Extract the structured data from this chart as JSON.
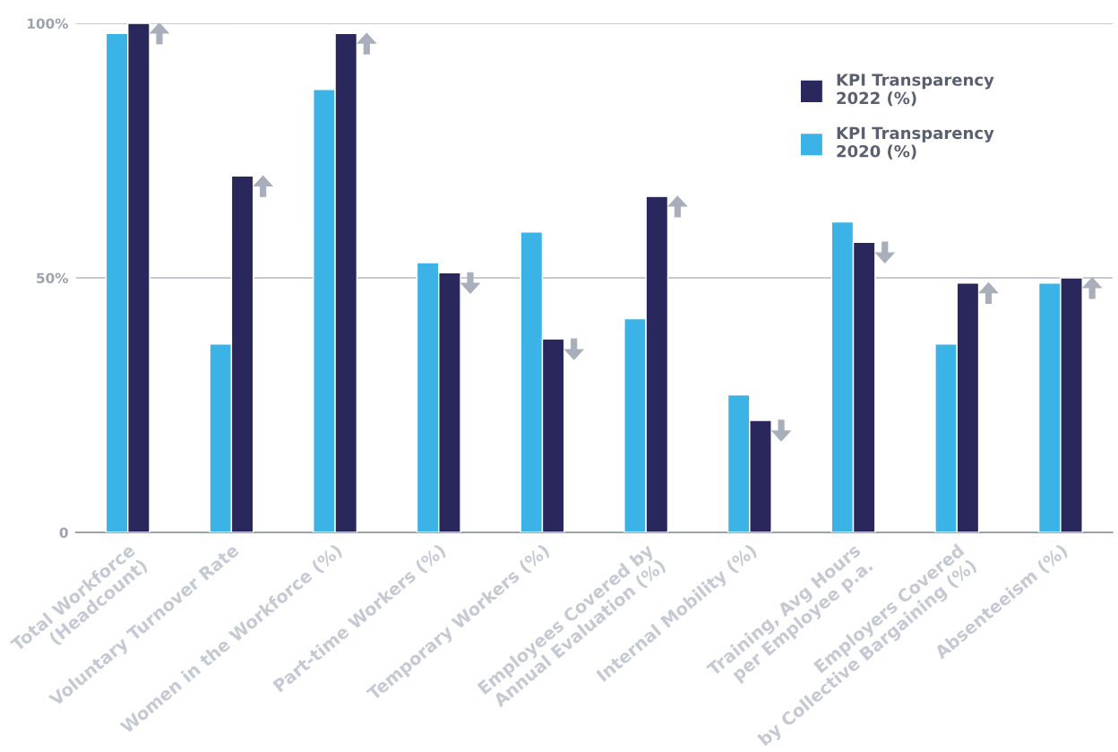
{
  "chart_data": {
    "type": "bar",
    "categories": [
      "Total Workforce\n(Headcount)",
      "Voluntary Turnover Rate",
      "Women in the Workforce (%)",
      "Part-time Workers (%)",
      "Temporary Workers (%)",
      "Employees Covered by\nAnnual Evaluation (%)",
      "Internal Mobility (%)",
      "Training, Avg Hours\nper Employee p.a.",
      "Employers Covered\nby Collective Bargaining (%)",
      "Absenteeism (%)"
    ],
    "series": [
      {
        "name": "KPI Transparency\n2020 (%)",
        "color": "#3bb3e6",
        "values": [
          98,
          37,
          87,
          53,
          59,
          42,
          27,
          61,
          37,
          49
        ]
      },
      {
        "name": "KPI Transparency\n2022 (%)",
        "color": "#29275c",
        "values": [
          100,
          70,
          98,
          51,
          38,
          66,
          22,
          57,
          49,
          50
        ]
      }
    ],
    "ylim": [
      0,
      100
    ],
    "yticks": [
      0,
      {
        "value": 50,
        "label": "50%"
      },
      {
        "value": 100,
        "label": "100%"
      }
    ],
    "grid": "y",
    "legend": "top right"
  }
}
